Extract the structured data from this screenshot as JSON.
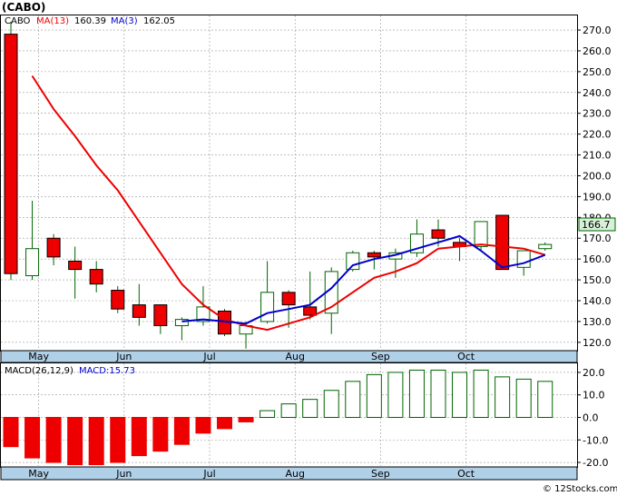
{
  "title": "(CABO)",
  "watermark": "© 12Stocks.com",
  "colors": {
    "down": "#ee0000",
    "up": "#ffffff",
    "wick": "#006400",
    "ma13": "#ee0000",
    "ma3": "#0000cc",
    "macd_pos": "#006400",
    "macd_neg": "#ee0000",
    "axis_band": "#b0d0e8",
    "grid": "#999999",
    "last_price_bg": "#d8f0d8"
  },
  "legend": {
    "symbol": "CABO",
    "ma13_label": "MA(13)",
    "ma13_value": "160.39",
    "ma3_label": "MA(3)",
    "ma3_value": "162.05"
  },
  "last_price_label": "166.7",
  "macd_legend": {
    "label": "MACD(26,12,9)",
    "value_label": "MACD:15.73"
  },
  "chart_data": [
    {
      "type": "candlestick",
      "months": [
        "May",
        "Jun",
        "Jul",
        "Aug",
        "Sep",
        "Oct"
      ],
      "month_positions": [
        1.3,
        5.3,
        9.3,
        13.3,
        17.3,
        21.3
      ],
      "y_ticks": [
        120,
        130,
        140,
        150,
        160,
        170,
        180,
        190,
        200,
        210,
        220,
        230,
        240,
        250,
        260,
        270
      ],
      "y_tick_labels": [
        "120.0",
        "130.0",
        "140.0",
        "150.0",
        "160.0",
        "170.0",
        "180.0",
        "190.0",
        "200.0",
        "210.0",
        "220.0",
        "230.0",
        "240.0",
        "250.0",
        "260.0",
        "270.0"
      ],
      "ylim": [
        116,
        277
      ],
      "candles": [
        {
          "o": 268,
          "h": 274,
          "l": 150,
          "c": 153
        },
        {
          "o": 152,
          "h": 188,
          "l": 150,
          "c": 165
        },
        {
          "o": 170,
          "h": 172,
          "l": 157,
          "c": 161
        },
        {
          "o": 159,
          "h": 166,
          "l": 141,
          "c": 155
        },
        {
          "o": 155,
          "h": 159,
          "l": 144,
          "c": 148
        },
        {
          "o": 145,
          "h": 147,
          "l": 134,
          "c": 136
        },
        {
          "o": 138,
          "h": 148,
          "l": 128,
          "c": 132
        },
        {
          "o": 138,
          "h": 138,
          "l": 124,
          "c": 128
        },
        {
          "o": 128,
          "h": 132,
          "l": 121,
          "c": 131
        },
        {
          "o": 130,
          "h": 147,
          "l": 128,
          "c": 137
        },
        {
          "o": 135,
          "h": 136,
          "l": 123,
          "c": 124
        },
        {
          "o": 124,
          "h": 130,
          "l": 117,
          "c": 128
        },
        {
          "o": 130,
          "h": 159,
          "l": 129,
          "c": 144
        },
        {
          "o": 144,
          "h": 145,
          "l": 127,
          "c": 138
        },
        {
          "o": 137,
          "h": 154,
          "l": 131,
          "c": 133
        },
        {
          "o": 134,
          "h": 156,
          "l": 124,
          "c": 154
        },
        {
          "o": 155,
          "h": 164,
          "l": 154,
          "c": 163
        },
        {
          "o": 163,
          "h": 164,
          "l": 155,
          "c": 161
        },
        {
          "o": 160,
          "h": 165,
          "l": 151,
          "c": 163
        },
        {
          "o": 163,
          "h": 179,
          "l": 161,
          "c": 172
        },
        {
          "o": 174,
          "h": 179,
          "l": 166,
          "c": 170
        },
        {
          "o": 168,
          "h": 170,
          "l": 159,
          "c": 166
        },
        {
          "o": 166,
          "h": 178,
          "l": 164,
          "c": 178
        },
        {
          "o": 181,
          "h": 181,
          "l": 155,
          "c": 155
        },
        {
          "o": 156,
          "h": 164,
          "l": 152,
          "c": 164
        },
        {
          "o": 165,
          "h": 168,
          "l": 164,
          "c": 167
        }
      ],
      "series": [
        {
          "name": "MA(13)",
          "values": [
            null,
            248,
            232,
            219,
            205,
            193,
            178,
            163,
            148,
            138,
            131,
            128,
            126,
            129,
            132,
            137,
            144,
            151,
            154,
            158,
            165,
            166,
            167,
            166,
            165,
            162
          ]
        },
        {
          "name": "MA(3)",
          "values": [
            null,
            null,
            null,
            null,
            null,
            null,
            null,
            null,
            130,
            131,
            130,
            129,
            134,
            136,
            138,
            146,
            157,
            160,
            162,
            165,
            168,
            171,
            164,
            156,
            158,
            162
          ]
        }
      ]
    },
    {
      "type": "bar",
      "title": "MACD(26,12,9)",
      "y_ticks": [
        -20,
        -10,
        0,
        10,
        20
      ],
      "y_tick_labels": [
        "-20.0",
        "-10.0",
        "0.0",
        "10.0",
        "20.0"
      ],
      "ylim": [
        -22,
        24
      ],
      "values": [
        -13,
        -18,
        -20,
        -21,
        -21,
        -20,
        -17,
        -15,
        -12,
        -7,
        -5,
        -2,
        3,
        6,
        8,
        12,
        16,
        19,
        20,
        21,
        21,
        20,
        21,
        18,
        17,
        16
      ]
    }
  ]
}
